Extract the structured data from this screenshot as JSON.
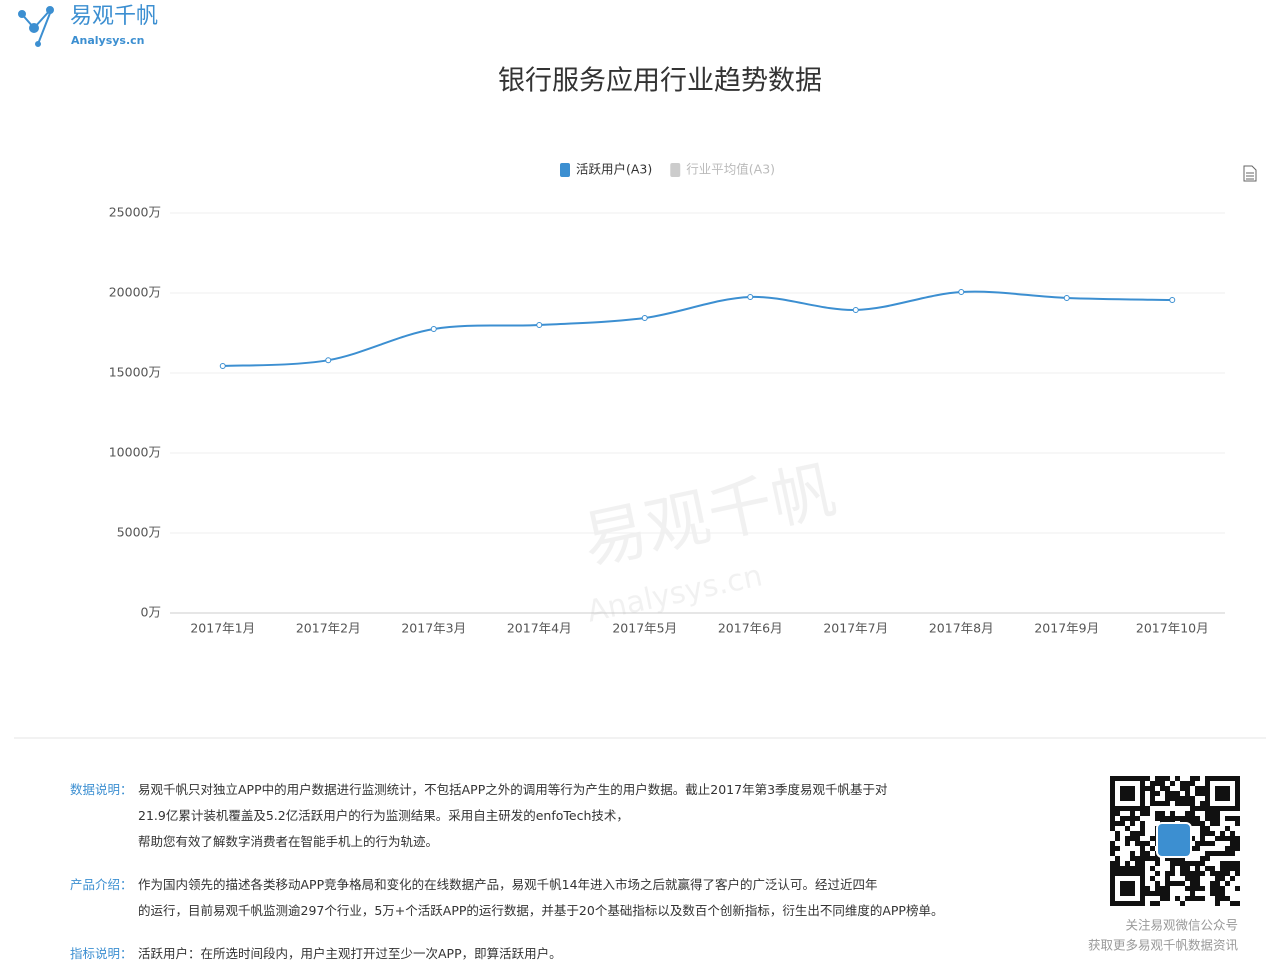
{
  "logo": {
    "name": "易观千帆",
    "site": "Analysys.cn"
  },
  "chart_data": {
    "type": "line",
    "title": "银行服务应用行业趋势数据",
    "categories": [
      "2017年1月",
      "2017年2月",
      "2017年3月",
      "2017年4月",
      "2017年5月",
      "2017年6月",
      "2017年7月",
      "2017年8月",
      "2017年9月",
      "2017年10月"
    ],
    "series": [
      {
        "name": "活跃用户(A3)",
        "color": "#3c8fd1",
        "values": [
          15440,
          15800,
          17750,
          18000,
          18440,
          19750,
          18940,
          20060,
          19690,
          19560
        ]
      },
      {
        "name": "行业平均值(A3)",
        "color": "#cccccc",
        "values": [
          null,
          null,
          null,
          null,
          null,
          null,
          null,
          null,
          null,
          null
        ]
      }
    ],
    "ylim": [
      0,
      25000
    ],
    "yticks": [
      {
        "value": 0,
        "label": "0万"
      },
      {
        "value": 5000,
        "label": "5000万"
      },
      {
        "value": 10000,
        "label": "10000万"
      },
      {
        "value": 15000,
        "label": "15000万"
      },
      {
        "value": 20000,
        "label": "20000万"
      },
      {
        "value": 25000,
        "label": "25000万"
      }
    ],
    "grid": true
  },
  "watermark": {
    "name": "易观千帆",
    "site": "Analysys.cn"
  },
  "notes": [
    {
      "label": "数据说明：",
      "lines": [
        "易观千帆只对独立APP中的用户数据进行监测统计，不包括APP之外的调用等行为产生的用户数据。截止2017年第3季度易观千帆基于对",
        "21.9亿累计装机覆盖及5.2亿活跃用户的行为监测结果。采用自主研发的enfoTech技术，",
        "帮助您有效了解数字消费者在智能手机上的行为轨迹。"
      ]
    },
    {
      "label": "产品介绍：",
      "lines": [
        "作为国内领先的描述各类移动APP竞争格局和变化的在线数据产品，易观千帆14年进入市场之后就赢得了客户的广泛认可。经过近四年",
        "的运行，目前易观千帆监测逾297个行业，5万+个活跃APP的运行数据，并基于20个基础指标以及数百个创新指标，衍生出不同维度的APP榜单。"
      ]
    },
    {
      "label": "指标说明：",
      "lines": [
        "活跃用户：在所选时间段内，用户主观打开过至少一次APP，即算活跃用户。"
      ]
    }
  ],
  "qr_caption": [
    "关注易观微信公众号",
    "获取更多易观千帆数据资讯"
  ]
}
